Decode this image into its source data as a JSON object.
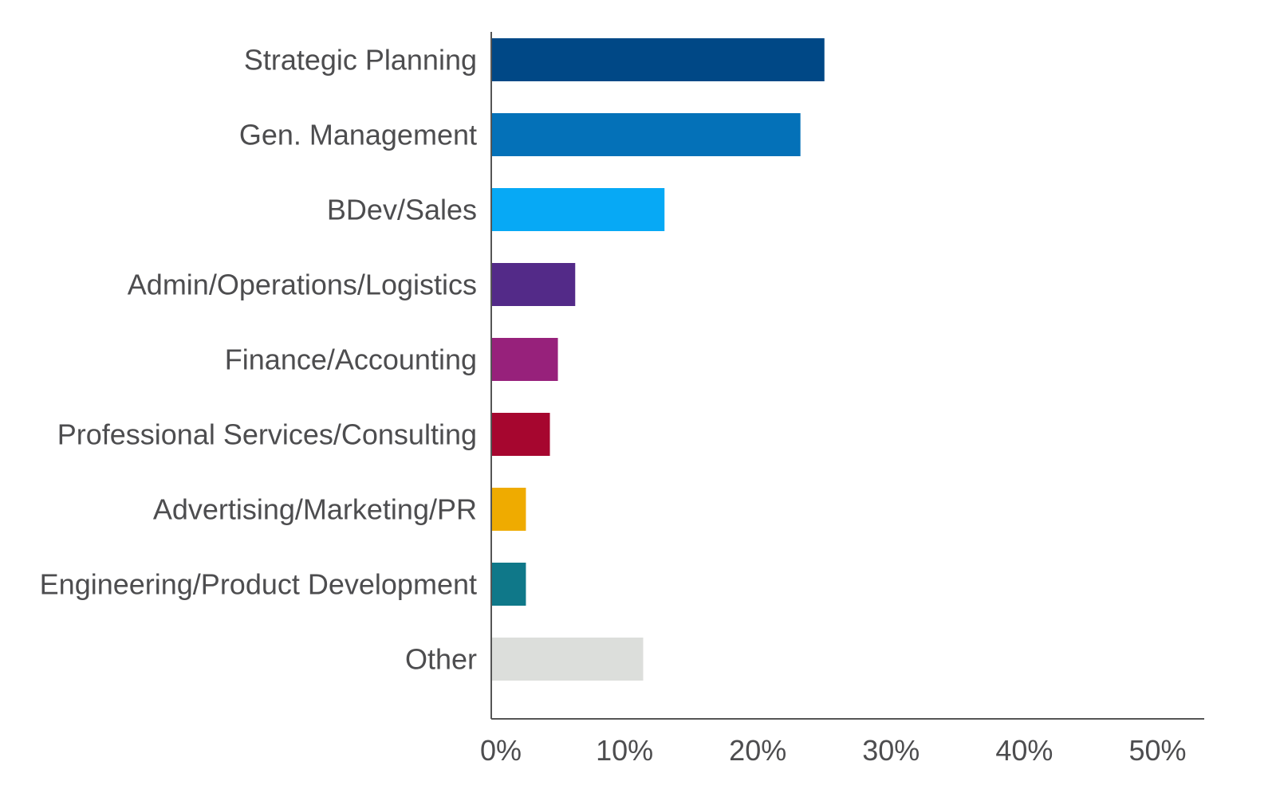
{
  "chart_data": {
    "type": "bar",
    "orientation": "horizontal",
    "categories": [
      "Strategic Planning",
      "Gen. Management",
      "BDev/Sales",
      "Admin/Operations/Logistics",
      "Finance/Accounting",
      "Professional Services/Consulting",
      "Advertising/Marketing/PR",
      "Engineering/Product Development",
      "Other"
    ],
    "values": [
      25,
      23.2,
      13,
      6.3,
      5,
      4.4,
      2.6,
      2.6,
      11.4
    ],
    "colors": [
      "#004886",
      "#0471b8",
      "#07a9f5",
      "#532a88",
      "#97217b",
      "#a6062f",
      "#efab00",
      "#0f7889",
      "#dcdedb"
    ],
    "xlim": [
      0,
      53.5
    ],
    "xticks": [
      0,
      10,
      20,
      30,
      40,
      50
    ],
    "xtick_labels": [
      "0%",
      "10%",
      "20%",
      "30%",
      "40%",
      "50%"
    ],
    "title": "",
    "xlabel": "",
    "ylabel": "",
    "grid": false,
    "legend": "none"
  }
}
